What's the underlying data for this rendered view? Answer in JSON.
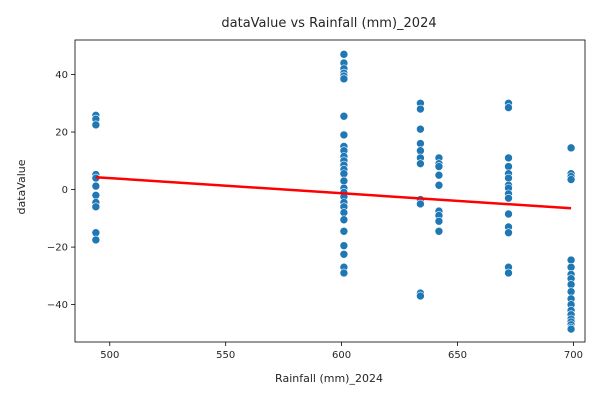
{
  "chart_data": {
    "type": "scatter",
    "title": "dataValue vs Rainfall (mm)_2024",
    "xlabel": "Rainfall (mm)_2024",
    "ylabel": "dataValue",
    "xlim": [
      485,
      705
    ],
    "ylim": [
      -53,
      52
    ],
    "xticks": [
      500,
      550,
      600,
      650,
      700
    ],
    "yticks": [
      -40,
      -20,
      0,
      20,
      40
    ],
    "grid": false,
    "colors": {
      "points": "#1f77b4",
      "trend": "#ff0000",
      "axes": "#000000"
    },
    "points": [
      [
        494,
        25.8
      ],
      [
        494,
        24.5
      ],
      [
        494,
        22.5
      ],
      [
        494,
        5.2
      ],
      [
        494,
        4.0
      ],
      [
        494,
        1.2
      ],
      [
        494,
        -2.0
      ],
      [
        494,
        -4.5
      ],
      [
        494,
        -6.0
      ],
      [
        494,
        -15.0
      ],
      [
        494,
        -17.5
      ],
      [
        601,
        47.0
      ],
      [
        601,
        44.0
      ],
      [
        601,
        42.0
      ],
      [
        601,
        40.5
      ],
      [
        601,
        39.5
      ],
      [
        601,
        38.5
      ],
      [
        601,
        25.5
      ],
      [
        601,
        19.0
      ],
      [
        601,
        15.0
      ],
      [
        601,
        13.5
      ],
      [
        601,
        11.5
      ],
      [
        601,
        10.0
      ],
      [
        601,
        8.5
      ],
      [
        601,
        7.0
      ],
      [
        601,
        5.5
      ],
      [
        601,
        3.0
      ],
      [
        601,
        0.5
      ],
      [
        601,
        -1.0
      ],
      [
        601,
        -2.5
      ],
      [
        601,
        -4.5
      ],
      [
        601,
        -6.0
      ],
      [
        601,
        -8.0
      ],
      [
        601,
        -10.5
      ],
      [
        601,
        -14.5
      ],
      [
        601,
        -19.5
      ],
      [
        601,
        -22.5
      ],
      [
        601,
        -27.0
      ],
      [
        601,
        -29.0
      ],
      [
        634,
        30.0
      ],
      [
        634,
        28.0
      ],
      [
        634,
        21.0
      ],
      [
        634,
        16.0
      ],
      [
        634,
        13.5
      ],
      [
        634,
        11.0
      ],
      [
        634,
        9.0
      ],
      [
        634,
        -3.5
      ],
      [
        634,
        -5.0
      ],
      [
        634,
        -36.0
      ],
      [
        634,
        -37.0
      ],
      [
        642,
        11.0
      ],
      [
        642,
        9.0
      ],
      [
        642,
        8.0
      ],
      [
        642,
        5.0
      ],
      [
        642,
        1.5
      ],
      [
        642,
        -7.5
      ],
      [
        642,
        -9.0
      ],
      [
        642,
        -11.0
      ],
      [
        642,
        -14.5
      ],
      [
        672,
        30.0
      ],
      [
        672,
        28.5
      ],
      [
        672,
        11.0
      ],
      [
        672,
        8.0
      ],
      [
        672,
        5.5
      ],
      [
        672,
        4.0
      ],
      [
        672,
        1.5
      ],
      [
        672,
        0.5
      ],
      [
        672,
        -1.5
      ],
      [
        672,
        -3.0
      ],
      [
        672,
        -8.5
      ],
      [
        672,
        -13.0
      ],
      [
        672,
        -15.0
      ],
      [
        672,
        -27.0
      ],
      [
        672,
        -29.0
      ],
      [
        699,
        14.5
      ],
      [
        699,
        5.5
      ],
      [
        699,
        4.5
      ],
      [
        699,
        3.5
      ],
      [
        699,
        -24.5
      ],
      [
        699,
        -27.0
      ],
      [
        699,
        -29.5
      ],
      [
        699,
        -31.0
      ],
      [
        699,
        -33.0
      ],
      [
        699,
        -35.5
      ],
      [
        699,
        -38.0
      ],
      [
        699,
        -40.0
      ],
      [
        699,
        -42.0
      ],
      [
        699,
        -43.5
      ],
      [
        699,
        -45.0
      ],
      [
        699,
        -46.0
      ],
      [
        699,
        -47.0
      ],
      [
        699,
        -48.0
      ],
      [
        699,
        -48.5
      ]
    ],
    "trendline": {
      "x": [
        494,
        699
      ],
      "y": [
        4.3,
        -6.5
      ]
    }
  }
}
